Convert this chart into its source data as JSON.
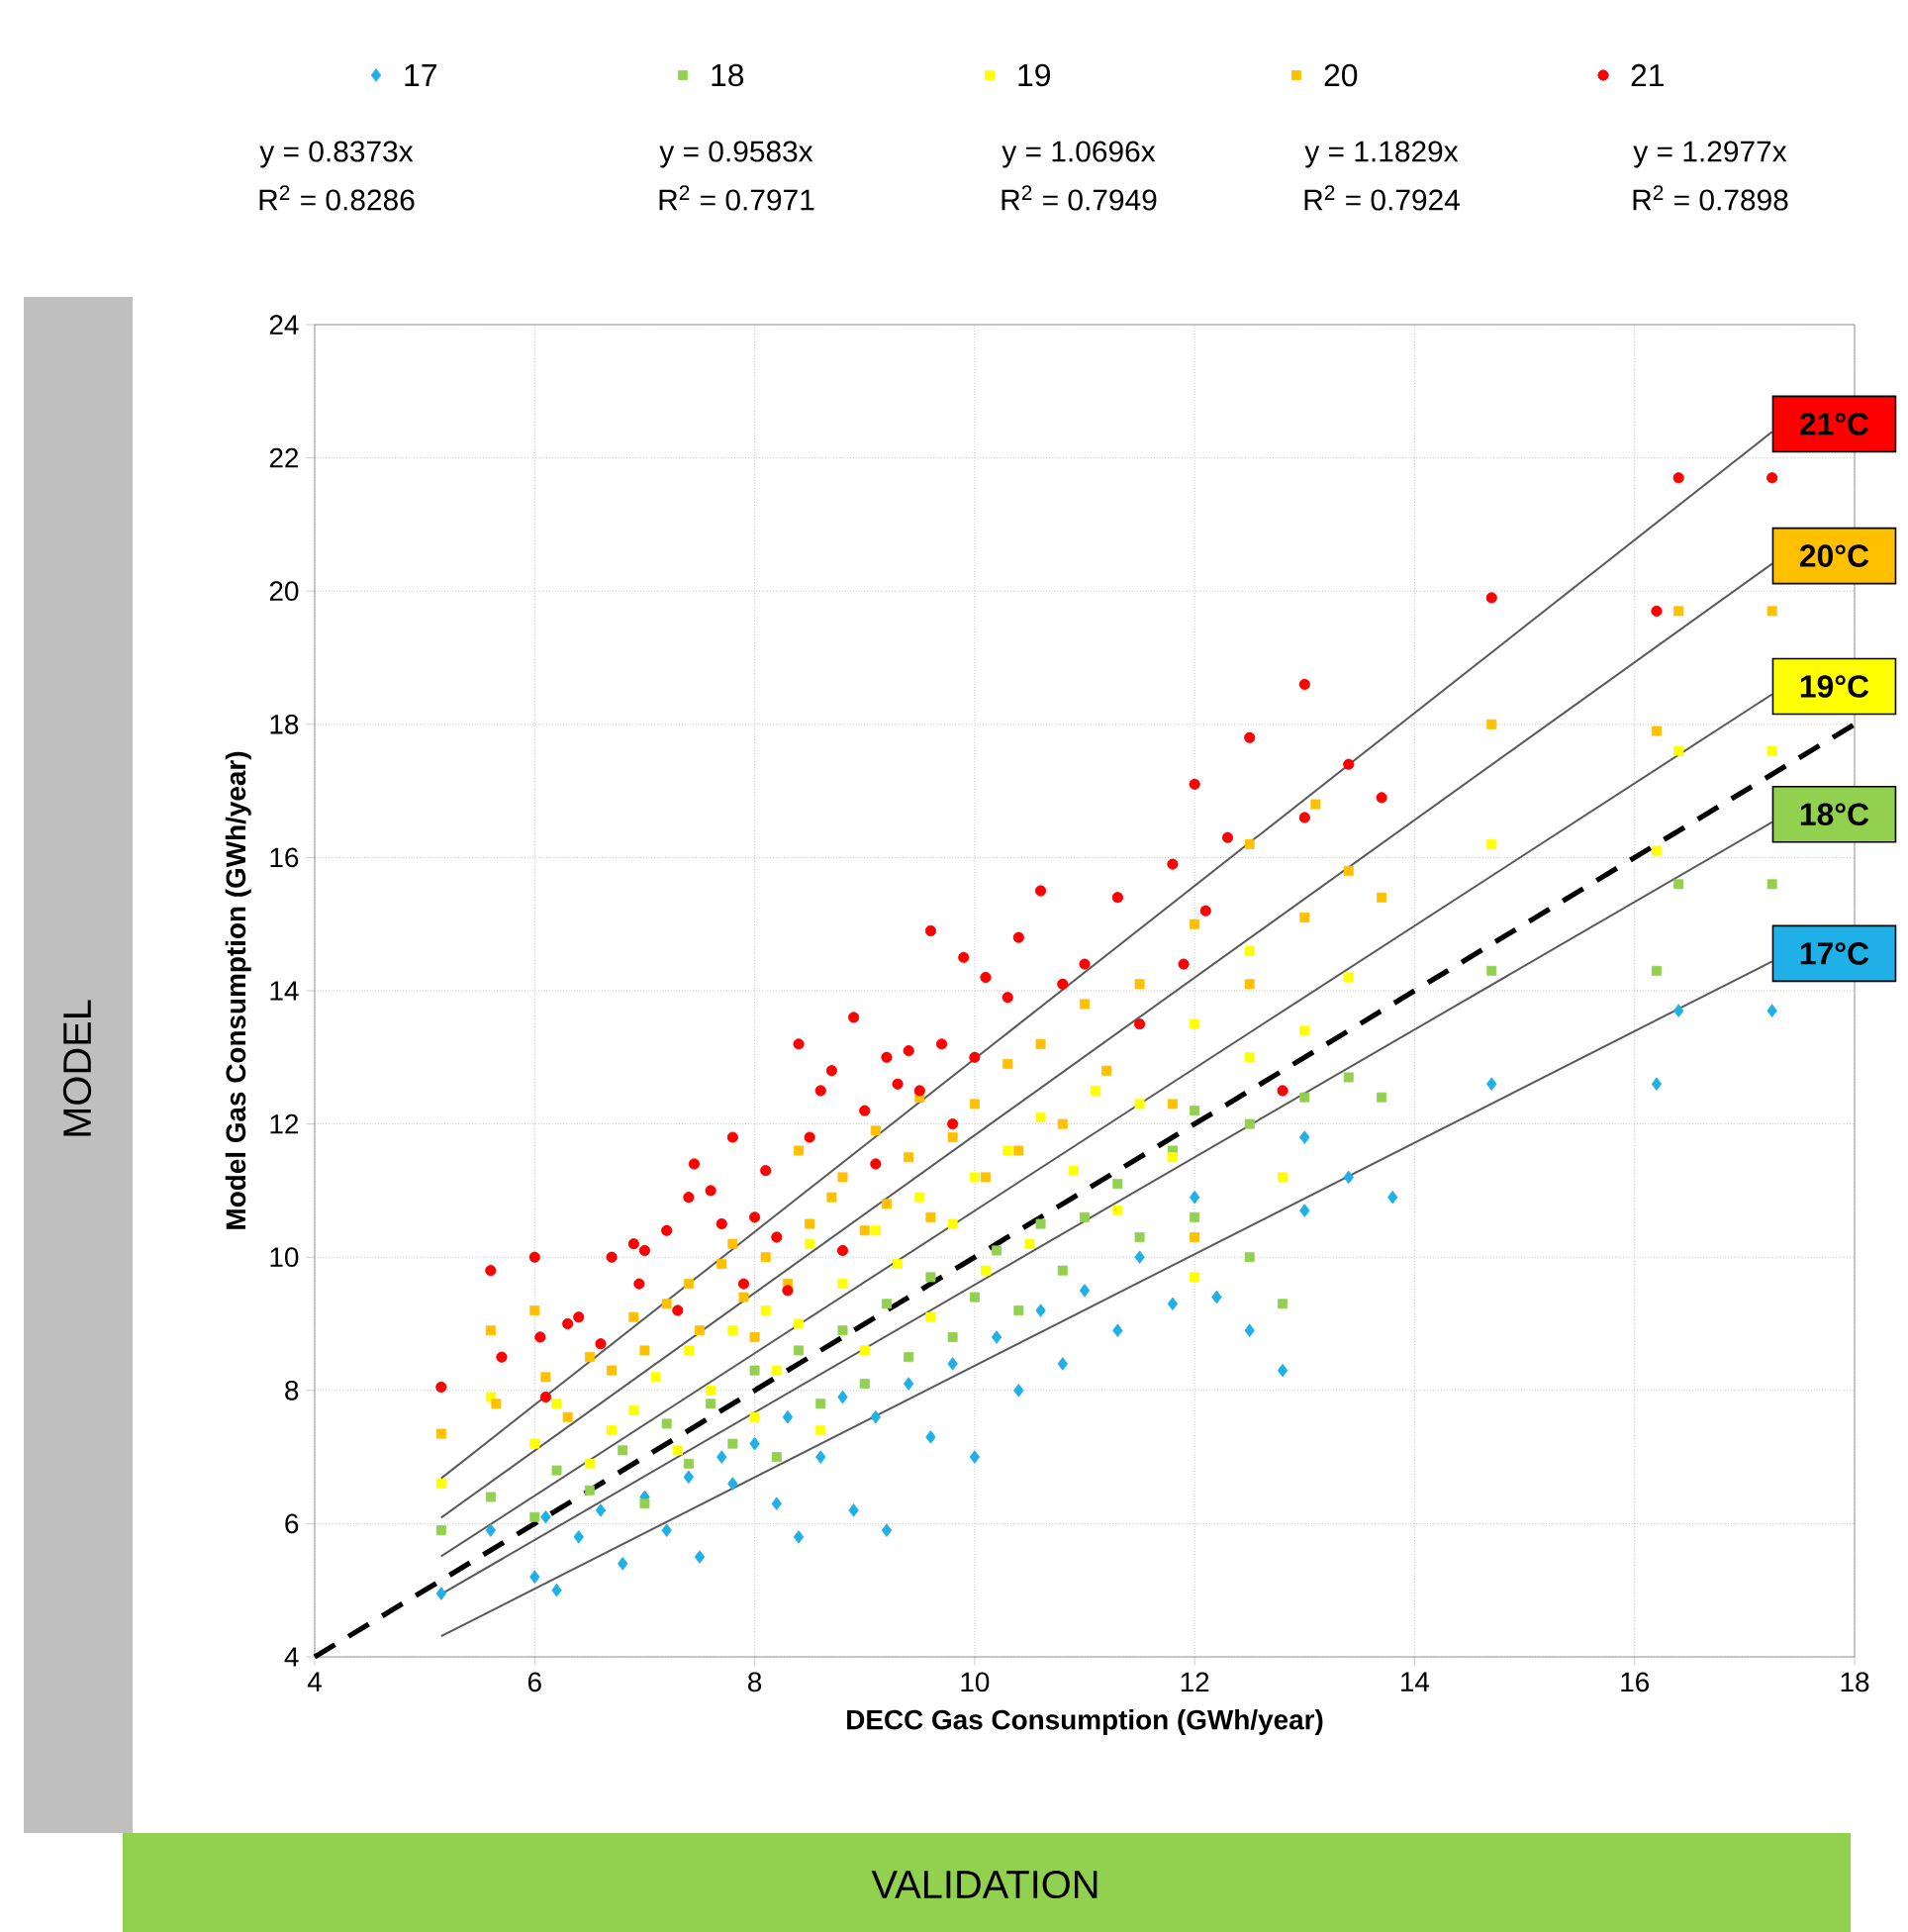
{
  "chart_data": {
    "type": "scatter",
    "xlabel": "DECC Gas Consumption  (GWh/year)",
    "ylabel": "Model Gas Consumption  (GWh/year)",
    "xlim": [
      4,
      18
    ],
    "xticks": [
      4,
      6,
      8,
      10,
      12,
      14,
      16,
      18
    ],
    "ylim": [
      4,
      24
    ],
    "yticks": [
      4,
      6,
      8,
      10,
      12,
      14,
      16,
      18,
      20,
      22,
      24
    ],
    "grid": true,
    "legend": "top",
    "series": [
      {
        "name": "17",
        "color": "#1fb0e8",
        "marker": "diamond",
        "x": [
          5.15,
          5.6,
          6.0,
          6.1,
          6.2,
          6.4,
          6.6,
          6.8,
          7.0,
          7.2,
          7.4,
          7.5,
          7.7,
          7.8,
          8.0,
          8.2,
          8.3,
          8.4,
          8.6,
          8.8,
          8.9,
          9.1,
          9.2,
          9.4,
          9.6,
          9.8,
          10.0,
          10.2,
          10.4,
          10.6,
          10.8,
          11.0,
          11.3,
          11.5,
          11.8,
          12.0,
          12.2,
          12.5,
          12.8,
          13.0,
          13.0,
          13.4,
          13.8,
          14.7,
          16.2,
          16.4,
          17.25
        ],
        "values": [
          4.95,
          5.9,
          5.2,
          6.1,
          5.0,
          5.8,
          6.2,
          5.4,
          6.4,
          5.9,
          6.7,
          5.5,
          7.0,
          6.6,
          7.2,
          6.3,
          7.6,
          5.8,
          7.0,
          7.9,
          6.2,
          7.6,
          5.9,
          8.1,
          7.3,
          8.4,
          7.0,
          8.8,
          8.0,
          9.2,
          8.4,
          9.5,
          8.9,
          10.0,
          9.3,
          10.9,
          9.4,
          8.9,
          8.3,
          11.8,
          10.7,
          11.2,
          10.9,
          12.6,
          12.6,
          13.7,
          13.7
        ]
      },
      {
        "name": "18",
        "color": "#92d050",
        "marker": "square",
        "x": [
          5.15,
          5.6,
          6.0,
          6.2,
          6.5,
          6.8,
          7.0,
          7.2,
          7.4,
          7.6,
          7.8,
          8.0,
          8.2,
          8.4,
          8.6,
          8.8,
          9.0,
          9.2,
          9.4,
          9.6,
          9.8,
          10.0,
          10.2,
          10.4,
          10.6,
          10.8,
          11.0,
          11.3,
          11.5,
          11.8,
          12.0,
          12.0,
          12.5,
          12.5,
          12.8,
          13.0,
          13.4,
          13.7,
          14.7,
          16.2,
          16.4,
          17.25
        ],
        "values": [
          5.9,
          6.4,
          6.1,
          6.8,
          6.5,
          7.1,
          6.3,
          7.5,
          6.9,
          7.8,
          7.2,
          8.3,
          7.0,
          8.6,
          7.8,
          8.9,
          8.1,
          9.3,
          8.5,
          9.7,
          8.8,
          9.4,
          10.1,
          9.2,
          10.5,
          9.8,
          10.6,
          11.1,
          10.3,
          11.6,
          12.2,
          10.6,
          12.0,
          10.0,
          9.3,
          12.4,
          12.7,
          12.4,
          14.3,
          14.3,
          15.6,
          15.6
        ]
      },
      {
        "name": "19",
        "color": "#ffff00",
        "marker": "square",
        "x": [
          5.15,
          5.6,
          6.0,
          6.2,
          6.5,
          6.7,
          6.9,
          7.1,
          7.3,
          7.4,
          7.6,
          7.8,
          8.0,
          8.1,
          8.2,
          8.4,
          8.5,
          8.6,
          8.8,
          9.0,
          9.1,
          9.3,
          9.5,
          9.6,
          9.8,
          10.0,
          10.1,
          10.3,
          10.5,
          10.6,
          10.9,
          11.1,
          11.3,
          11.5,
          11.8,
          12.0,
          12.0,
          12.5,
          12.5,
          12.8,
          13.0,
          13.4,
          14.7,
          16.2,
          16.4,
          17.25
        ],
        "values": [
          6.6,
          7.9,
          7.2,
          7.8,
          6.9,
          7.4,
          7.7,
          8.2,
          7.1,
          8.6,
          8.0,
          8.9,
          7.6,
          9.2,
          8.3,
          9.0,
          10.2,
          7.4,
          9.6,
          8.6,
          10.4,
          9.9,
          10.9,
          9.1,
          10.5,
          11.2,
          9.8,
          11.6,
          10.2,
          12.1,
          11.3,
          12.5,
          10.7,
          12.3,
          11.5,
          13.5,
          9.7,
          13.0,
          14.6,
          11.2,
          13.4,
          14.2,
          16.2,
          16.1,
          17.6,
          17.6
        ]
      },
      {
        "name": "20",
        "color": "#ffc000",
        "marker": "square",
        "x": [
          5.15,
          5.6,
          5.65,
          6.0,
          6.1,
          6.3,
          6.5,
          6.7,
          6.9,
          7.0,
          7.2,
          7.4,
          7.5,
          7.7,
          7.8,
          7.9,
          8.0,
          8.1,
          8.3,
          8.4,
          8.5,
          8.7,
          8.8,
          9.0,
          9.1,
          9.2,
          9.4,
          9.5,
          9.6,
          9.8,
          10.0,
          10.1,
          10.3,
          10.4,
          10.6,
          10.8,
          11.0,
          11.2,
          11.5,
          11.8,
          12.0,
          12.0,
          12.5,
          12.5,
          13.0,
          13.1,
          13.4,
          13.7,
          14.7,
          16.2,
          16.4,
          17.25
        ],
        "values": [
          7.35,
          8.9,
          7.8,
          9.2,
          8.2,
          7.6,
          8.5,
          8.3,
          9.1,
          8.6,
          9.3,
          9.6,
          8.9,
          9.9,
          10.2,
          9.4,
          8.8,
          10.0,
          9.6,
          11.6,
          10.5,
          10.9,
          11.2,
          10.4,
          11.9,
          10.8,
          11.5,
          12.4,
          10.6,
          11.8,
          12.3,
          11.2,
          12.9,
          11.6,
          13.2,
          12.0,
          13.8,
          12.8,
          14.1,
          12.3,
          15.0,
          10.3,
          14.1,
          16.2,
          15.1,
          16.8,
          15.8,
          15.4,
          18.0,
          17.9,
          19.7,
          19.7
        ]
      },
      {
        "name": "21",
        "color": "#ff0000",
        "marker": "circle",
        "x": [
          5.15,
          5.6,
          5.7,
          6.0,
          6.05,
          6.1,
          6.3,
          6.4,
          6.6,
          6.7,
          6.9,
          6.95,
          7.0,
          7.2,
          7.3,
          7.4,
          7.45,
          7.6,
          7.7,
          7.8,
          7.9,
          8.0,
          8.1,
          8.2,
          8.3,
          8.4,
          8.5,
          8.6,
          8.7,
          8.8,
          8.9,
          9.0,
          9.1,
          9.2,
          9.3,
          9.4,
          9.5,
          9.6,
          9.7,
          9.8,
          9.9,
          10.0,
          10.1,
          10.3,
          10.4,
          10.6,
          10.8,
          11.0,
          11.3,
          11.5,
          11.8,
          11.9,
          12.0,
          12.1,
          12.3,
          12.5,
          12.8,
          13.0,
          13.0,
          13.4,
          13.7,
          14.7,
          16.2,
          16.4,
          17.25
        ],
        "values": [
          8.05,
          9.8,
          8.5,
          10.0,
          8.8,
          7.9,
          9.0,
          9.1,
          8.7,
          10.0,
          10.2,
          9.6,
          10.1,
          10.4,
          9.2,
          10.9,
          11.4,
          11.0,
          10.5,
          11.8,
          9.6,
          10.6,
          11.3,
          10.3,
          9.5,
          13.2,
          11.8,
          12.5,
          12.8,
          10.1,
          13.6,
          12.2,
          11.4,
          13.0,
          12.6,
          13.1,
          12.5,
          14.9,
          13.2,
          12.0,
          14.5,
          13.0,
          14.2,
          13.9,
          14.8,
          15.5,
          14.1,
          14.4,
          15.4,
          13.5,
          15.9,
          14.4,
          17.1,
          15.2,
          16.3,
          17.8,
          12.5,
          18.6,
          16.6,
          17.4,
          16.9,
          19.9,
          19.7,
          21.7,
          21.7
        ]
      },
      {
        "type": "line",
        "color": "#595959",
        "x": [
          5.15,
          17.25
        ],
        "values": [
          4.31,
          14.44
        ]
      },
      {
        "type": "line",
        "color": "#595959",
        "x": [
          5.15,
          17.25
        ],
        "values": [
          4.94,
          16.53
        ]
      },
      {
        "type": "line",
        "color": "#595959",
        "x": [
          5.15,
          17.25
        ],
        "values": [
          5.51,
          18.45
        ]
      },
      {
        "type": "line",
        "color": "#595959",
        "x": [
          5.15,
          17.25
        ],
        "values": [
          6.09,
          20.41
        ]
      },
      {
        "type": "line",
        "color": "#595959",
        "x": [
          5.15,
          17.25
        ],
        "values": [
          6.68,
          22.39
        ]
      },
      {
        "type": "line",
        "color": "#000000",
        "line_style": "dashed",
        "x": [
          4,
          18
        ],
        "values": [
          4,
          18
        ]
      }
    ],
    "annotations": [
      "y = 0.8373x",
      "R$^{2}$ = 0.8286",
      "y = 0.9583x",
      "R$^{2}$ = 0.7971",
      "y = 1.0696x",
      "R$^{2}$ = 0.7949",
      "y = 1.1829x",
      "R$^{2}$ = 0.7924",
      "y = 1.2977x",
      "R$^{2}$ = 0.7898",
      "MODEL",
      "VALIDATION",
      "17°C",
      "18°C",
      "19°C",
      "20°C",
      "21°C"
    ]
  }
}
